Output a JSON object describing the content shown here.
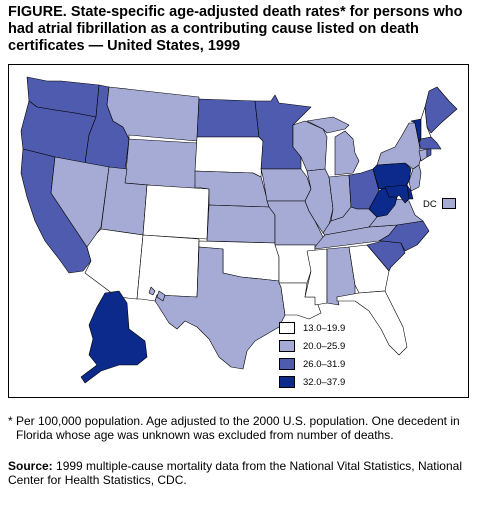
{
  "figure": {
    "title": "FIGURE. State-specific age-adjusted death rates* for persons who had atrial fibrillation as a contributing cause listed on death certificates — United States, 1999"
  },
  "colors": {
    "class_1": "#ffffff",
    "class_2": "#a6abd6",
    "class_3": "#4f5bae",
    "class_4": "#0b2a8c",
    "border": "#000000"
  },
  "legend": {
    "items": [
      {
        "label": "13.0–19.9",
        "class": "class_1"
      },
      {
        "label": "20.0–25.9",
        "class": "class_2"
      },
      {
        "label": "26.0–31.9",
        "class": "class_3"
      },
      {
        "label": "32.0–37.9",
        "class": "class_4"
      }
    ]
  },
  "dc": {
    "label": "DC",
    "class": "class_2"
  },
  "state_classes": {
    "WA": "class_3",
    "OR": "class_3",
    "CA": "class_3",
    "ID": "class_3",
    "NV": "class_2",
    "MT": "class_2",
    "WY": "class_2",
    "UT": "class_2",
    "AZ": "class_1",
    "CO": "class_1",
    "NM": "class_1",
    "ND": "class_3",
    "SD": "class_1",
    "NE": "class_2",
    "KS": "class_2",
    "OK": "class_1",
    "TX": "class_2",
    "MN": "class_3",
    "IA": "class_2",
    "MO": "class_2",
    "AR": "class_1",
    "LA": "class_1",
    "WI": "class_2",
    "IL": "class_2",
    "MI": "class_2",
    "IN": "class_2",
    "OH": "class_3",
    "KY": "class_2",
    "TN": "class_2",
    "MS": "class_1",
    "AL": "class_2",
    "GA": "class_1",
    "FL": "class_1",
    "SC": "class_3",
    "NC": "class_3",
    "VA": "class_2",
    "WV": "class_4",
    "PA": "class_4",
    "NY": "class_2",
    "VT": "class_4",
    "NH": "class_1",
    "ME": "class_3",
    "MA": "class_3",
    "RI": "class_3",
    "CT": "class_2",
    "NJ": "class_2",
    "DE": "class_4",
    "MD": "class_4",
    "AK": "class_4",
    "HI": "class_2"
  },
  "footnote": {
    "mark": "*",
    "text": "Per 100,000 population. Age adjusted to the 2000 U.S. population. One decedent in Florida whose age was unknown was excluded from number of deaths."
  },
  "source": {
    "label": "Source:",
    "text": " 1999 multiple-cause mortality data from the National Vital Statistics, National Center for Health Statistics, CDC."
  }
}
